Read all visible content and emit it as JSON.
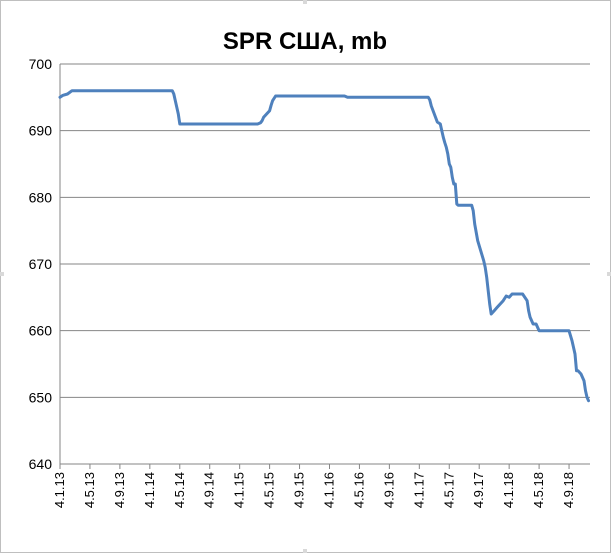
{
  "chart_data": {
    "type": "line",
    "title": "SPR США, mb",
    "xlabel": "",
    "ylabel": "",
    "ylim": [
      640,
      700
    ],
    "yticks": [
      "700",
      "690",
      "680",
      "670",
      "660",
      "650",
      "640"
    ],
    "xticks": [
      "4.1.13",
      "4.5.13",
      "4.9.13",
      "4.1.14",
      "4.5.14",
      "4.9.14",
      "4.1.15",
      "4.5.15",
      "4.9.15",
      "4.1.16",
      "4.5.16",
      "4.9.16",
      "4.1.17",
      "4.5.17",
      "4.9.17",
      "4.1.18",
      "4.5.18",
      "4.9.18"
    ],
    "grid": true,
    "legend": "none",
    "line_color": "#4f81bd",
    "series": [
      {
        "x": [
          0,
          0.1,
          0.25,
          0.4,
          0.6,
          1.0,
          2.0,
          3.0,
          3.5,
          3.75,
          3.8,
          3.85,
          3.9,
          3.95,
          4.0,
          4.05,
          4.1,
          5.0,
          6.0,
          6.5,
          6.6,
          6.7,
          6.75,
          6.8,
          6.9,
          7.0,
          7.05,
          7.1,
          7.2,
          8.0,
          9.0,
          9.5,
          9.6,
          10.0,
          11.0,
          12.0,
          12.3,
          12.35,
          12.4,
          12.5,
          12.6,
          12.7,
          12.75,
          12.8,
          12.85,
          12.9,
          12.95,
          13.0,
          13.05,
          13.1,
          13.15,
          13.2,
          13.25,
          13.3,
          13.35,
          13.4,
          13.6,
          13.75,
          13.8,
          13.85,
          13.95,
          14.05,
          14.15,
          14.2,
          14.25,
          14.3,
          14.35,
          14.4,
          14.5,
          14.6,
          14.7,
          14.8,
          14.9,
          15.0,
          15.1,
          15.2,
          15.3,
          15.45,
          15.6,
          15.65,
          15.7,
          15.8,
          15.9,
          16.0,
          16.5,
          17.0,
          17.1,
          17.15,
          17.2,
          17.25,
          17.3,
          17.4,
          17.5,
          17.55,
          17.6,
          17.65
        ],
        "values": [
          695.0,
          695.3,
          695.5,
          696.0,
          696.0,
          696.0,
          696.0,
          696.0,
          696.0,
          696.0,
          695.5,
          694.5,
          693.5,
          692.5,
          691.0,
          691.0,
          691.0,
          691.0,
          691.0,
          691.0,
          691.0,
          691.2,
          691.5,
          692.0,
          692.5,
          693.0,
          693.8,
          694.5,
          695.2,
          695.2,
          695.2,
          695.2,
          695.0,
          695.0,
          695.0,
          695.0,
          695.0,
          694.6,
          693.7,
          692.5,
          691.3,
          691.0,
          690.0,
          689.0,
          688.2,
          687.5,
          686.5,
          685.0,
          684.5,
          683.0,
          682.0,
          682.0,
          679.0,
          678.8,
          678.8,
          678.8,
          678.8,
          678.8,
          678.0,
          676.0,
          673.5,
          672.0,
          670.5,
          669.5,
          668.0,
          666.0,
          664.0,
          662.5,
          663.0,
          663.5,
          664.0,
          664.5,
          665.2,
          665.0,
          665.5,
          665.5,
          665.5,
          665.5,
          664.5,
          663.0,
          662.0,
          661.0,
          661.0,
          660.0,
          660.0,
          660.0,
          658.5,
          657.5,
          656.5,
          654.0,
          654.0,
          653.5,
          652.5,
          651.0,
          650.0,
          649.5
        ]
      }
    ]
  }
}
